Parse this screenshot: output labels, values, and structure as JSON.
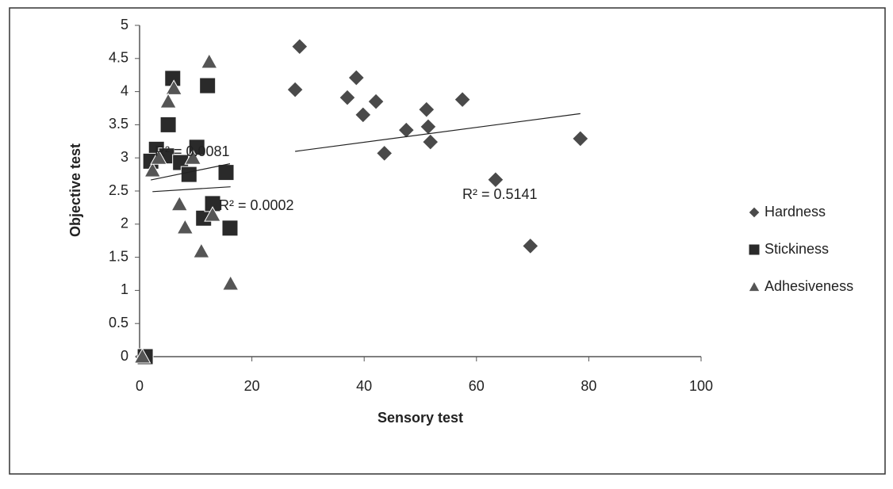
{
  "chart_data": {
    "type": "scatter",
    "xlabel": "Sensory test",
    "ylabel": "Objective test",
    "xlim": [
      0,
      100
    ],
    "xticks": [
      0,
      20,
      40,
      60,
      80,
      100
    ],
    "ylim": [
      0,
      5
    ],
    "yticks": [
      0,
      0.5,
      1,
      1.5,
      2,
      2.5,
      3,
      3.5,
      4,
      4.5,
      5
    ],
    "grid": false,
    "legend": "right",
    "trendline": true,
    "series": [
      {
        "name": "Hardness",
        "color": "#4a4a4a",
        "marker": "diamond",
        "x": [
          0.5,
          28.5,
          27.7,
          38.6,
          37.0,
          42.1,
          39.8,
          51.1,
          57.5,
          47.5,
          51.4,
          51.8,
          43.6,
          63.4,
          78.5,
          69.6
        ],
        "values": [
          0,
          4.68,
          4.03,
          4.21,
          3.91,
          3.85,
          3.65,
          3.73,
          3.88,
          3.42,
          3.47,
          3.24,
          3.07,
          2.67,
          3.29,
          1.67
        ]
      },
      {
        "name": "Stickiness",
        "color": "#2a2a2a",
        "marker": "square",
        "x": [
          1.0,
          5.1,
          5.9,
          12.1,
          3.0,
          4.8,
          7.3,
          10.2,
          2.0,
          8.8,
          15.4,
          11.4,
          13.0,
          16.1
        ],
        "values": [
          0,
          3.5,
          4.2,
          4.09,
          3.13,
          3.03,
          2.93,
          3.16,
          2.95,
          2.75,
          2.78,
          2.09,
          2.31,
          1.94
        ]
      },
      {
        "name": "Adhesiveness",
        "color": "#555555",
        "marker": "triangle",
        "x": [
          0.5,
          12.4,
          6.1,
          5.1,
          2.3,
          7.1,
          8.1,
          11.0,
          16.2,
          3.4,
          9.5,
          13.0
        ],
        "values": [
          0,
          4.45,
          4.05,
          3.85,
          2.81,
          2.3,
          1.95,
          1.59,
          1.1,
          3.0,
          3.0,
          2.14
        ]
      }
    ],
    "annotations": [
      "R² = 0.0081",
      "R² = 0.0002",
      "R² = 0.5141"
    ]
  }
}
